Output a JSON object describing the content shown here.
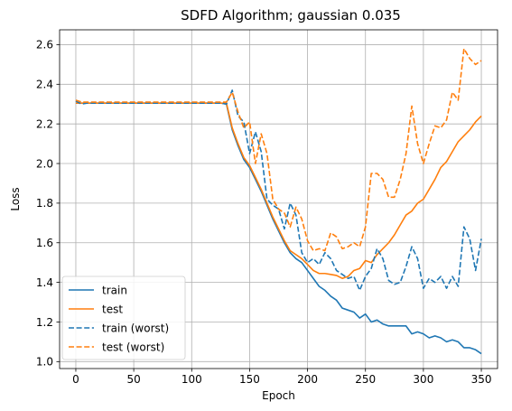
{
  "chart_data": {
    "type": "line",
    "title": "SDFD Algorithm; gaussian 0.035",
    "xlabel": "Epoch",
    "ylabel": "Loss",
    "xlim": [
      -14,
      364
    ],
    "ylim": [
      0.965,
      2.675
    ],
    "xticks": [
      0,
      50,
      100,
      150,
      200,
      250,
      300,
      350
    ],
    "yticks": [
      1.0,
      1.2,
      1.4,
      1.6,
      1.8,
      2.0,
      2.2,
      2.4,
      2.6
    ],
    "ytick_labels": [
      "1.0",
      "1.2",
      "1.4",
      "1.6",
      "1.8",
      "2.0",
      "2.2",
      "2.4",
      "2.6"
    ],
    "grid": true,
    "legend_position": "lower-left",
    "x": [
      0,
      5,
      10,
      15,
      20,
      25,
      30,
      35,
      40,
      45,
      50,
      55,
      60,
      65,
      70,
      75,
      80,
      85,
      90,
      95,
      100,
      105,
      110,
      115,
      120,
      125,
      130,
      135,
      140,
      145,
      150,
      155,
      160,
      165,
      170,
      175,
      180,
      185,
      190,
      195,
      200,
      205,
      210,
      215,
      220,
      225,
      230,
      235,
      240,
      245,
      250,
      255,
      260,
      265,
      270,
      275,
      280,
      285,
      290,
      295,
      300,
      305,
      310,
      315,
      320,
      325,
      330,
      335,
      340,
      345,
      350
    ],
    "series": [
      {
        "name": "train",
        "color": "#1f77b4",
        "dash": "solid",
        "values": [
          2.305,
          2.305,
          2.305,
          2.305,
          2.305,
          2.305,
          2.305,
          2.305,
          2.305,
          2.305,
          2.305,
          2.305,
          2.305,
          2.305,
          2.305,
          2.305,
          2.305,
          2.305,
          2.305,
          2.305,
          2.305,
          2.305,
          2.305,
          2.305,
          2.305,
          2.305,
          2.3,
          2.17,
          2.09,
          2.02,
          1.98,
          1.92,
          1.86,
          1.79,
          1.72,
          1.66,
          1.6,
          1.55,
          1.52,
          1.5,
          1.46,
          1.42,
          1.38,
          1.36,
          1.33,
          1.31,
          1.27,
          1.26,
          1.25,
          1.22,
          1.24,
          1.2,
          1.21,
          1.19,
          1.18,
          1.18,
          1.18,
          1.18,
          1.14,
          1.15,
          1.14,
          1.12,
          1.13,
          1.12,
          1.1,
          1.11,
          1.1,
          1.07,
          1.07,
          1.06,
          1.04
        ]
      },
      {
        "name": "test",
        "color": "#ff7f0e",
        "dash": "solid",
        "values": [
          2.305,
          2.305,
          2.305,
          2.305,
          2.305,
          2.305,
          2.305,
          2.305,
          2.305,
          2.305,
          2.305,
          2.305,
          2.305,
          2.305,
          2.305,
          2.305,
          2.305,
          2.305,
          2.305,
          2.305,
          2.305,
          2.305,
          2.305,
          2.305,
          2.305,
          2.305,
          2.305,
          2.18,
          2.1,
          2.03,
          1.99,
          1.93,
          1.87,
          1.8,
          1.73,
          1.67,
          1.61,
          1.56,
          1.54,
          1.52,
          1.49,
          1.46,
          1.445,
          1.445,
          1.44,
          1.435,
          1.42,
          1.43,
          1.46,
          1.47,
          1.51,
          1.5,
          1.54,
          1.57,
          1.6,
          1.64,
          1.69,
          1.74,
          1.76,
          1.8,
          1.82,
          1.87,
          1.92,
          1.98,
          2.01,
          2.06,
          2.11,
          2.14,
          2.17,
          2.21,
          2.24
        ]
      },
      {
        "name": "train (worst)",
        "color": "#1f77b4",
        "dash": "dashed",
        "values": [
          2.315,
          2.3,
          2.305,
          2.305,
          2.305,
          2.305,
          2.305,
          2.305,
          2.305,
          2.305,
          2.305,
          2.305,
          2.305,
          2.305,
          2.305,
          2.305,
          2.305,
          2.305,
          2.305,
          2.305,
          2.305,
          2.305,
          2.305,
          2.305,
          2.305,
          2.305,
          2.3,
          2.37,
          2.24,
          2.21,
          2.05,
          2.16,
          2.06,
          1.82,
          1.79,
          1.77,
          1.67,
          1.8,
          1.74,
          1.55,
          1.5,
          1.52,
          1.49,
          1.55,
          1.52,
          1.46,
          1.44,
          1.42,
          1.43,
          1.36,
          1.43,
          1.47,
          1.57,
          1.52,
          1.41,
          1.39,
          1.4,
          1.48,
          1.58,
          1.52,
          1.37,
          1.42,
          1.4,
          1.43,
          1.37,
          1.43,
          1.38,
          1.68,
          1.62,
          1.46,
          1.62
        ]
      },
      {
        "name": "test (worst)",
        "color": "#ff7f0e",
        "dash": "dashed",
        "values": [
          2.32,
          2.31,
          2.31,
          2.31,
          2.31,
          2.31,
          2.31,
          2.31,
          2.31,
          2.31,
          2.31,
          2.31,
          2.31,
          2.31,
          2.31,
          2.31,
          2.31,
          2.31,
          2.31,
          2.31,
          2.31,
          2.31,
          2.31,
          2.31,
          2.31,
          2.31,
          2.31,
          2.36,
          2.26,
          2.18,
          2.21,
          2.0,
          2.15,
          2.05,
          1.82,
          1.77,
          1.75,
          1.68,
          1.78,
          1.72,
          1.61,
          1.56,
          1.57,
          1.56,
          1.65,
          1.63,
          1.57,
          1.58,
          1.6,
          1.58,
          1.68,
          1.95,
          1.95,
          1.92,
          1.83,
          1.83,
          1.92,
          2.05,
          2.29,
          2.1,
          2.0,
          2.1,
          2.19,
          2.18,
          2.22,
          2.36,
          2.32,
          2.58,
          2.53,
          2.5,
          2.52
        ]
      }
    ]
  }
}
